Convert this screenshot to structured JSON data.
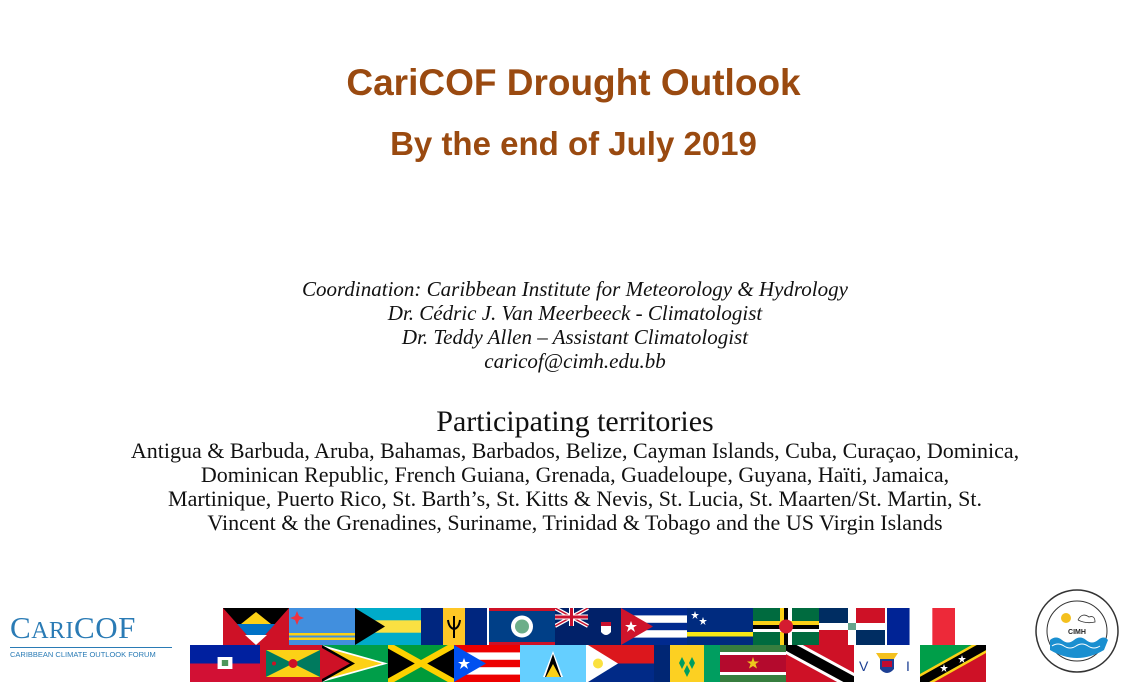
{
  "title": "CariCOF Drought Outlook",
  "subtitle": "By the end of July 2019",
  "coordination": {
    "line1": "Coordination: Caribbean Institute for Meteorology & Hydrology",
    "line2": "Dr. Cédric J. Van Meerbeeck - Climatologist",
    "line3": "Dr. Teddy Allen – Assistant Climatologist",
    "email": "caricof@cimh.edu.bb"
  },
  "participating": {
    "heading": "Participating territories",
    "lines": [
      "Antigua & Barbuda, Aruba, Bahamas, Barbados, Belize, Cayman Islands, Cuba, Curaçao, Dominica,",
      "Dominican Republic, French Guiana, Grenada, Guadeloupe, Guyana, Haïti, Jamaica,",
      "Martinique, Puerto Rico, St. Barth’s, St. Kitts & Nevis, St. Lucia, St. Maarten/St. Martin, St.",
      "Vincent & the Grenadines, Suriname, Trinidad & Tobago and the US Virgin Islands"
    ]
  },
  "logos": {
    "caricof_word": "CARICOF",
    "caricof_tagline": "CARIBBEAN CLIMATE OUTLOOK FORUM",
    "cimh_label": "CIMH",
    "cimh_ring": "Caribbean Institute for Meteorology and Hydrology"
  },
  "colors": {
    "title": "#9a4a10",
    "caricof_blue": "#2a7bb5"
  },
  "flags_row1": [
    "antigua-barbuda",
    "aruba",
    "bahamas",
    "barbados",
    "belize",
    "cayman-islands",
    "cuba",
    "curacao",
    "dominica",
    "dominican-republic",
    "french-flag"
  ],
  "flags_row2": [
    "haiti",
    "grenada",
    "guyana",
    "jamaica",
    "puerto-rico",
    "st-lucia",
    "sint-maarten",
    "st-vincent",
    "suriname",
    "trinidad-tobago",
    "us-virgin-islands",
    "st-kitts-nevis"
  ]
}
